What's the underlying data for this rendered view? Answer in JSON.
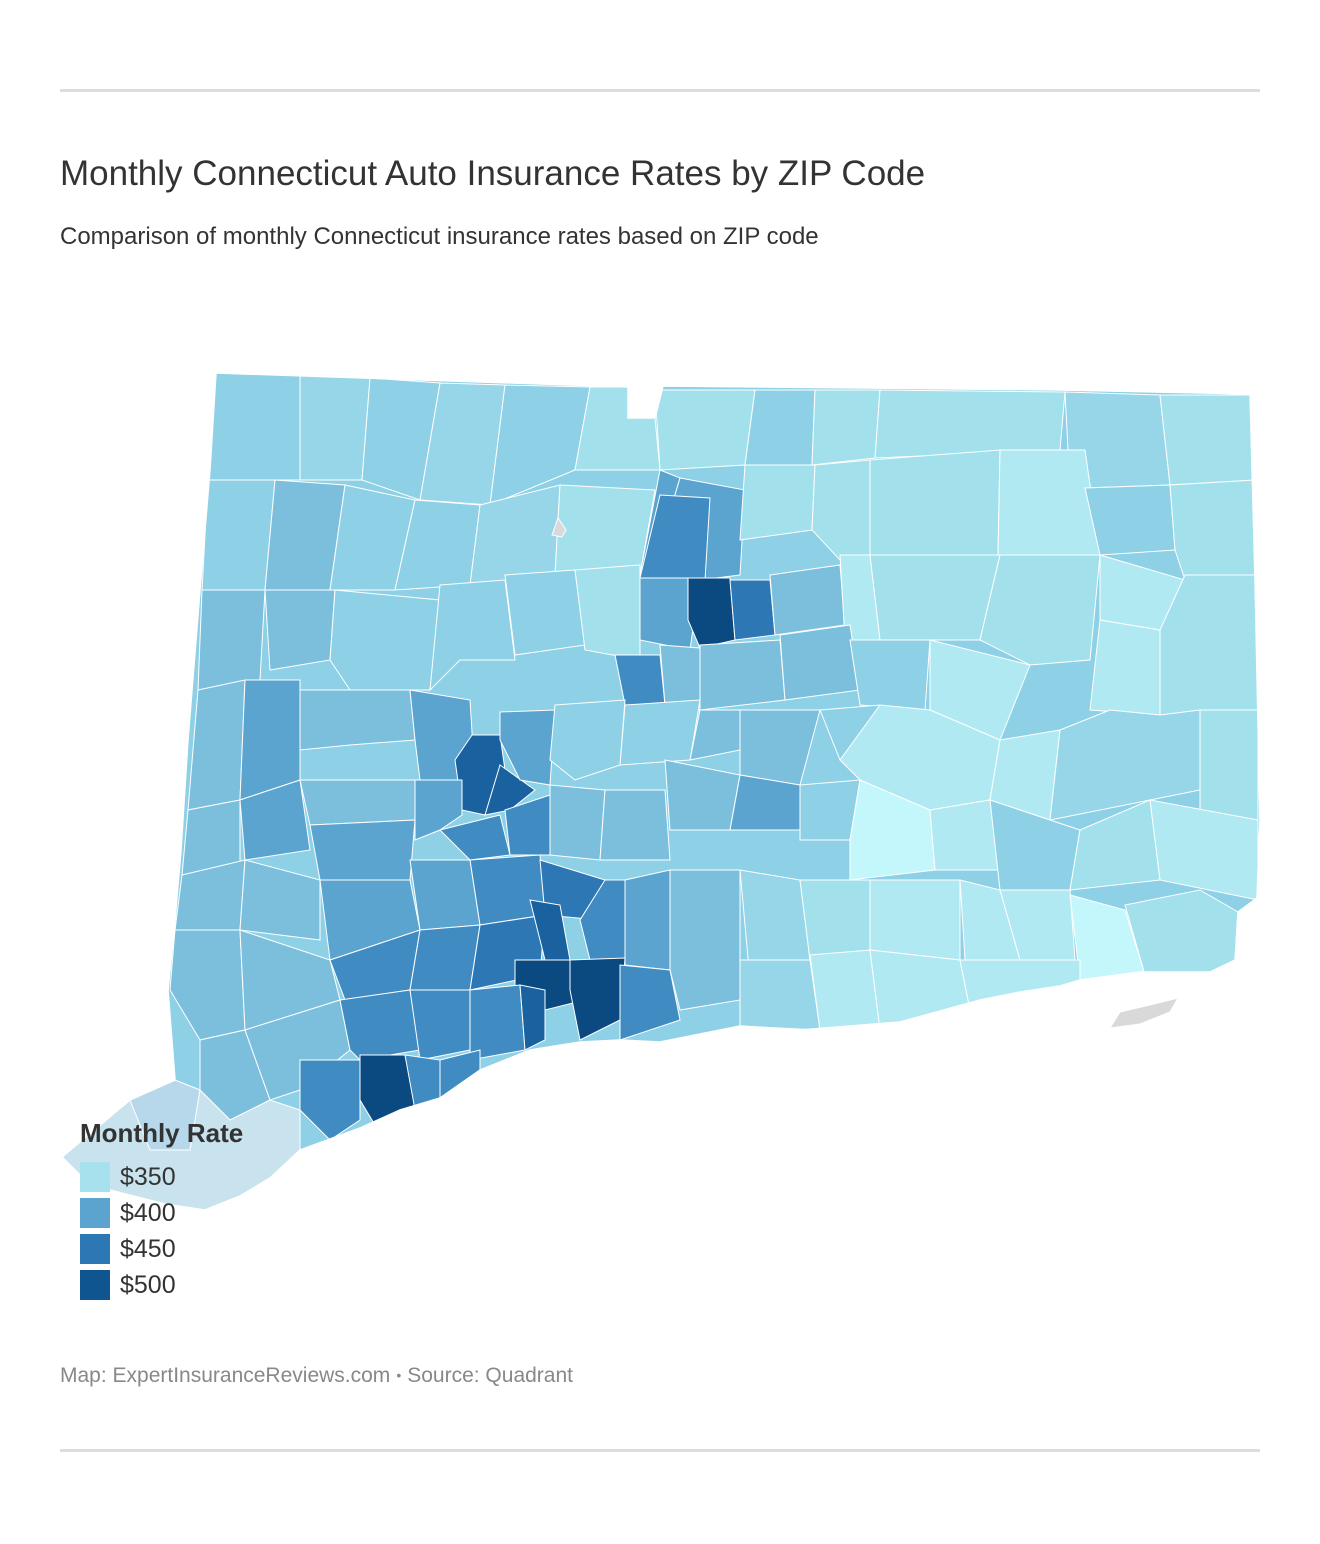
{
  "title": "Monthly Connecticut Auto Insurance Rates by ZIP Code",
  "subtitle": "Comparison of monthly Connecticut insurance rates based on ZIP code",
  "legend": {
    "title": "Monthly Rate",
    "items": [
      {
        "label": "$350",
        "color": "#a6e1ed"
      },
      {
        "label": "$400",
        "color": "#5aa4cf"
      },
      {
        "label": "$450",
        "color": "#2d78b4"
      },
      {
        "label": "$500",
        "color": "#0f5690"
      }
    ]
  },
  "footer": {
    "map_credit": "Map: ExpertInsuranceReviews.com",
    "separator": "•",
    "source": "Source: Quadrant"
  },
  "map_colors": {
    "lightest": "#c4f7fb",
    "very_light": "#b0e9f2",
    "light": "#a2e0ec",
    "light_mid": "#8ed0e5",
    "mid_light": "#7cbfdd",
    "mid": "#5aa4cf",
    "mid_dark": "#3f8bc2",
    "dark": "#2d78b4",
    "darker": "#1a629f",
    "darkest": "#0b4a80",
    "no_data": "#d9d9d9"
  }
}
